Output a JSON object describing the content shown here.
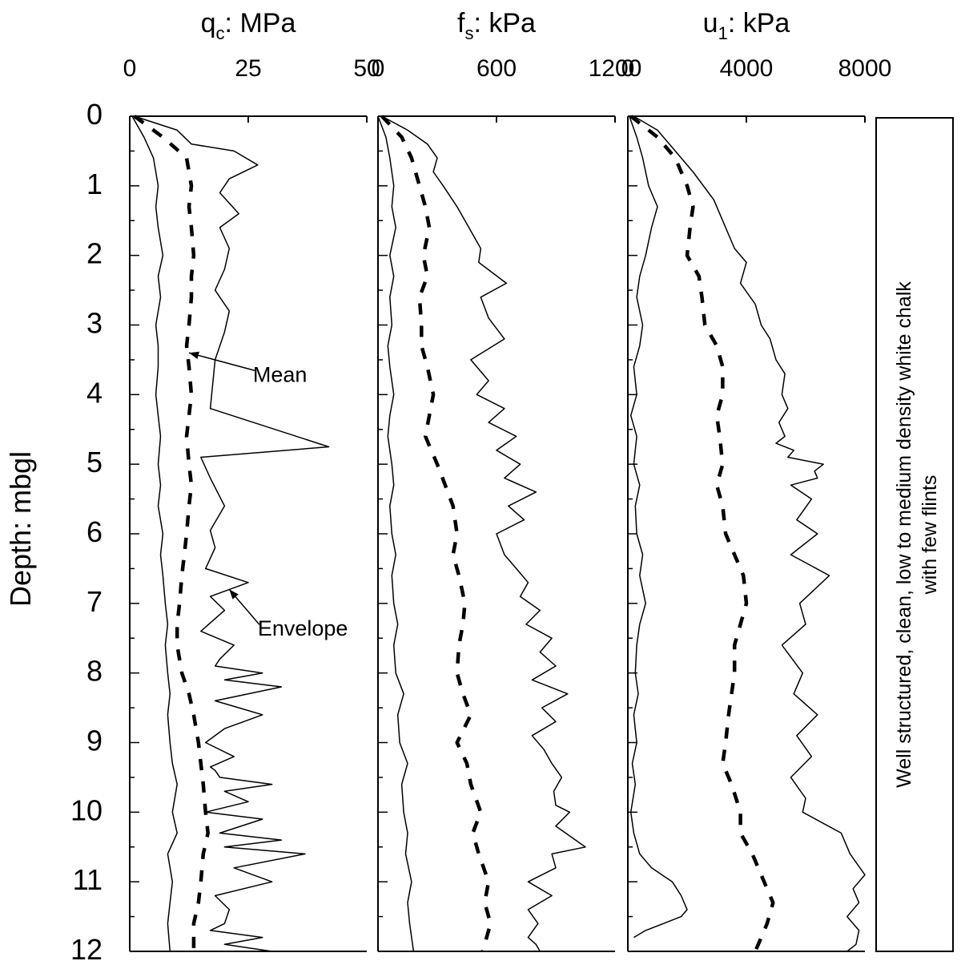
{
  "chart_data": [
    {
      "type": "line",
      "title": {
        "main": "q",
        "sub": "c",
        "rest": ": MPa"
      },
      "xlim": [
        0,
        50
      ],
      "ylim": [
        0,
        12
      ],
      "xticks": [
        "0",
        "25",
        "50"
      ],
      "series": [
        {
          "role": "lower-envelope",
          "style": "solid",
          "x": [
            0.5,
            3,
            5,
            6,
            5.5,
            6,
            7,
            6,
            6.5,
            5.5,
            6,
            6,
            5.5,
            6,
            6.5,
            6,
            6.5,
            6,
            7,
            6.5,
            7,
            7.5,
            8,
            7.5,
            8,
            8.5,
            8,
            8.5,
            9,
            10,
            9,
            10,
            8,
            9,
            8.5,
            8,
            8.5,
            8,
            8.5,
            9,
            8.5,
            9
          ],
          "y": [
            0,
            0.3,
            0.6,
            1,
            1.3,
            1.6,
            2,
            2.3,
            2.6,
            3,
            3.3,
            3.6,
            4,
            4.3,
            4.6,
            5,
            5.3,
            5.6,
            6,
            6.3,
            6.6,
            7,
            7.3,
            7.6,
            8,
            8.3,
            8.6,
            9,
            9.3,
            9.6,
            10,
            10.3,
            10.6,
            11,
            11.3,
            11.6,
            12,
            12,
            12,
            12,
            12,
            12
          ]
        },
        {
          "role": "mean",
          "style": "dashed",
          "x": [
            1,
            7,
            12,
            13,
            12.5,
            13,
            13.5,
            13,
            13,
            12.5,
            12,
            12.5,
            13,
            12.5,
            12,
            12.5,
            13,
            12.5,
            12,
            11.5,
            11,
            10.5,
            10,
            10,
            11,
            12.5,
            13.5,
            14.5,
            15,
            15.5,
            16,
            16.5,
            15.5,
            15,
            14.5,
            13.5,
            13.5
          ],
          "y": [
            0,
            0.3,
            0.6,
            1,
            1.3,
            1.6,
            2,
            2.3,
            2.6,
            3,
            3.3,
            3.6,
            4,
            4.3,
            4.6,
            5,
            5.3,
            5.6,
            6,
            6.3,
            6.6,
            7,
            7.3,
            7.6,
            8,
            8.3,
            8.6,
            9,
            9.3,
            9.6,
            10,
            10.3,
            10.6,
            11,
            11.3,
            11.6,
            12
          ]
        },
        {
          "role": "upper-envelope",
          "style": "solid",
          "x": [
            1,
            10,
            13,
            22,
            27,
            21,
            19,
            23,
            19,
            21,
            20,
            18,
            21,
            20,
            18,
            17,
            42,
            15,
            17,
            20,
            17,
            18,
            16,
            25,
            17,
            20,
            15,
            22,
            19,
            18,
            28,
            20,
            32,
            18,
            28,
            20,
            16,
            22,
            17,
            18,
            19,
            30,
            20,
            25,
            16,
            28,
            19,
            32,
            20,
            37,
            22,
            30,
            18,
            21,
            20,
            17,
            28,
            20,
            30,
            19,
            20,
            21
          ],
          "y": [
            0,
            0.2,
            0.4,
            0.5,
            0.7,
            0.9,
            1.1,
            1.4,
            1.6,
            1.9,
            2.2,
            2.5,
            2.8,
            3.1,
            3.5,
            4.2,
            4.75,
            4.9,
            5.2,
            5.6,
            5.95,
            6.2,
            6.5,
            6.7,
            6.9,
            7.1,
            7.4,
            7.6,
            7.8,
            7.9,
            8.0,
            8.1,
            8.2,
            8.4,
            8.6,
            8.8,
            9.0,
            9.2,
            9.35,
            9.4,
            9.5,
            9.6,
            9.7,
            9.85,
            10.0,
            10.1,
            10.3,
            10.4,
            10.5,
            10.6,
            10.8,
            11.0,
            11.2,
            11.4,
            11.6,
            11.7,
            11.8,
            11.9,
            12,
            12,
            12,
            12
          ]
        }
      ],
      "annotations": [
        {
          "text": "Mean",
          "x": 26,
          "y": 3.7,
          "arrow_to": [
            12.5,
            3.4
          ]
        },
        {
          "text": "Envelope",
          "x": 27,
          "y": 7.35,
          "arrow_to": [
            21,
            6.8
          ]
        }
      ]
    },
    {
      "type": "line",
      "title": {
        "main": "f",
        "sub": "s",
        "rest": ": kPa"
      },
      "xlim": [
        0,
        1200
      ],
      "ylim": [
        0,
        12
      ],
      "xticks": [
        "0",
        "600",
        "1200"
      ],
      "series": [
        {
          "role": "lower-envelope",
          "style": "solid",
          "x": [
            0,
            40,
            60,
            80,
            70,
            90,
            60,
            80,
            60,
            70,
            50,
            60,
            80,
            60,
            50,
            70,
            80,
            60,
            70,
            90,
            70,
            80,
            100,
            80,
            90,
            130,
            100,
            110,
            150,
            120,
            130,
            150,
            140,
            170,
            150,
            160,
            180,
            150,
            170,
            180,
            160
          ],
          "y": [
            0,
            0.3,
            0.6,
            1,
            1.3,
            1.6,
            2,
            2.3,
            2.6,
            3,
            3.3,
            3.6,
            4,
            4.3,
            4.6,
            5,
            5.3,
            5.6,
            6,
            6.3,
            6.6,
            7,
            7.3,
            7.6,
            8,
            8.3,
            8.6,
            9,
            9.3,
            9.6,
            10,
            10.3,
            10.6,
            11,
            11.3,
            11.6,
            12,
            12,
            12,
            12,
            12
          ]
        },
        {
          "role": "mean",
          "style": "dashed",
          "x": [
            20,
            120,
            170,
            210,
            240,
            260,
            230,
            250,
            210,
            220,
            220,
            250,
            280,
            260,
            240,
            300,
            340,
            380,
            400,
            380,
            410,
            440,
            430,
            410,
            400,
            430,
            470,
            400,
            450,
            470,
            520,
            480,
            510,
            560,
            540,
            570,
            530
          ],
          "y": [
            0,
            0.3,
            0.6,
            1,
            1.3,
            1.6,
            2,
            2.3,
            2.6,
            3,
            3.3,
            3.6,
            4,
            4.3,
            4.6,
            5,
            5.3,
            5.6,
            6,
            6.3,
            6.6,
            7,
            7.3,
            7.6,
            8,
            8.3,
            8.6,
            9,
            9.3,
            9.6,
            10,
            10.3,
            10.6,
            11,
            11.3,
            11.6,
            12
          ]
        },
        {
          "role": "upper-envelope",
          "style": "solid",
          "x": [
            20,
            150,
            250,
            300,
            280,
            330,
            400,
            460,
            520,
            510,
            650,
            520,
            560,
            640,
            470,
            560,
            500,
            640,
            560,
            700,
            600,
            720,
            640,
            800,
            660,
            740,
            600,
            640,
            700,
            760,
            720,
            820,
            750,
            880,
            820,
            900,
            780,
            960,
            830,
            900,
            780,
            840,
            880,
            930,
            890,
            900,
            970,
            900,
            1000,
            1050,
            880,
            900,
            760,
            880,
            760,
            810,
            760,
            800,
            820,
            780,
            760,
            780
          ],
          "y": [
            0,
            0.2,
            0.4,
            0.6,
            0.8,
            1.0,
            1.3,
            1.6,
            1.9,
            2.1,
            2.4,
            2.6,
            2.9,
            3.2,
            3.5,
            3.8,
            4.0,
            4.2,
            4.4,
            4.6,
            4.8,
            5.0,
            5.2,
            5.4,
            5.6,
            5.8,
            6.0,
            6.3,
            6.5,
            6.7,
            6.9,
            7.1,
            7.3,
            7.5,
            7.7,
            7.9,
            8.1,
            8.3,
            8.5,
            8.7,
            8.9,
            9.1,
            9.3,
            9.5,
            9.7,
            9.9,
            10.0,
            10.2,
            10.4,
            10.5,
            10.6,
            10.8,
            11.0,
            11.2,
            11.4,
            11.6,
            11.8,
            11.9,
            12,
            12,
            12,
            12
          ]
        }
      ]
    },
    {
      "type": "line",
      "title": {
        "main": "u",
        "sub": "1",
        "rest": ": kPa"
      },
      "xlim": [
        0,
        8000
      ],
      "ylim": [
        0,
        12
      ],
      "xticks": [
        "0",
        "4000",
        "8000"
      ],
      "series": [
        {
          "role": "lower-envelope",
          "style": "solid",
          "x": [
            50,
            300,
            500,
            700,
            1000,
            800,
            600,
            400,
            300,
            500,
            400,
            200,
            300,
            100,
            300,
            200,
            400,
            250,
            300,
            500,
            400,
            600,
            400,
            300,
            250,
            350,
            200,
            300,
            150,
            250,
            100,
            200,
            400,
            800,
            1500,
            1800,
            2000,
            1800,
            1200,
            600,
            200
          ],
          "y": [
            0,
            0.3,
            0.6,
            1,
            1.3,
            1.6,
            2,
            2.3,
            2.6,
            3,
            3.3,
            3.6,
            4,
            4.3,
            4.6,
            5,
            5.3,
            5.6,
            6,
            6.3,
            6.6,
            7,
            7.3,
            7.6,
            8,
            8.3,
            8.6,
            9,
            9.3,
            9.6,
            10,
            10.3,
            10.6,
            10.8,
            11.0,
            11.2,
            11.4,
            11.5,
            11.6,
            11.7,
            11.8
          ]
        },
        {
          "role": "mean",
          "style": "dashed",
          "x": [
            100,
            1000,
            1600,
            2000,
            2200,
            2100,
            2000,
            2400,
            2500,
            2600,
            3000,
            3200,
            3200,
            3000,
            3100,
            3200,
            3000,
            3200,
            3300,
            3600,
            3900,
            4000,
            3800,
            3600,
            3600,
            3500,
            3400,
            3300,
            3200,
            3500,
            3800,
            3800,
            4200,
            4600,
            4900,
            4700,
            4300
          ],
          "y": [
            0,
            0.3,
            0.6,
            1,
            1.3,
            1.6,
            2,
            2.3,
            2.6,
            3,
            3.3,
            3.6,
            4,
            4.3,
            4.6,
            5,
            5.3,
            5.6,
            6,
            6.3,
            6.6,
            7,
            7.3,
            7.6,
            8,
            8.3,
            8.6,
            9,
            9.3,
            9.6,
            10,
            10.3,
            10.6,
            11,
            11.3,
            11.6,
            12
          ]
        },
        {
          "role": "upper-envelope",
          "style": "solid",
          "x": [
            200,
            1000,
            1600,
            2200,
            2900,
            3300,
            3600,
            4000,
            3800,
            4300,
            4500,
            4800,
            5000,
            5300,
            5200,
            5400,
            5100,
            5300,
            5000,
            5600,
            5400,
            6600,
            6300,
            6400,
            5500,
            6200,
            5700,
            6400,
            5500,
            6800,
            5800,
            6000,
            5200,
            5900,
            5600,
            6400,
            5700,
            6200,
            5500,
            6000,
            5900,
            7200,
            7500,
            8000,
            7600,
            7800,
            7400,
            7800,
            7700,
            7400,
            7600
          ],
          "y": [
            0,
            0.2,
            0.5,
            0.8,
            1.2,
            1.6,
            1.9,
            2.1,
            2.4,
            2.7,
            3.0,
            3.2,
            3.5,
            3.7,
            4.0,
            4.2,
            4.4,
            4.6,
            4.7,
            4.8,
            4.9,
            5.0,
            5.1,
            5.2,
            5.3,
            5.5,
            5.8,
            6.0,
            6.3,
            6.6,
            7.0,
            7.3,
            7.6,
            8.0,
            8.3,
            8.6,
            8.9,
            9.2,
            9.5,
            9.8,
            10.0,
            10.3,
            10.6,
            10.9,
            11.1,
            11.3,
            11.5,
            11.7,
            11.9,
            12,
            12
          ]
        }
      ]
    }
  ],
  "y_axis": {
    "label": "Depth: mbgl",
    "ticks": [
      "0",
      "1",
      "2",
      "3",
      "4",
      "5",
      "6",
      "7",
      "8",
      "9",
      "10",
      "11",
      "12"
    ]
  },
  "description_box": {
    "lines": [
      "Well structured, clean, low to medium density white chalk",
      "with few flints"
    ]
  }
}
